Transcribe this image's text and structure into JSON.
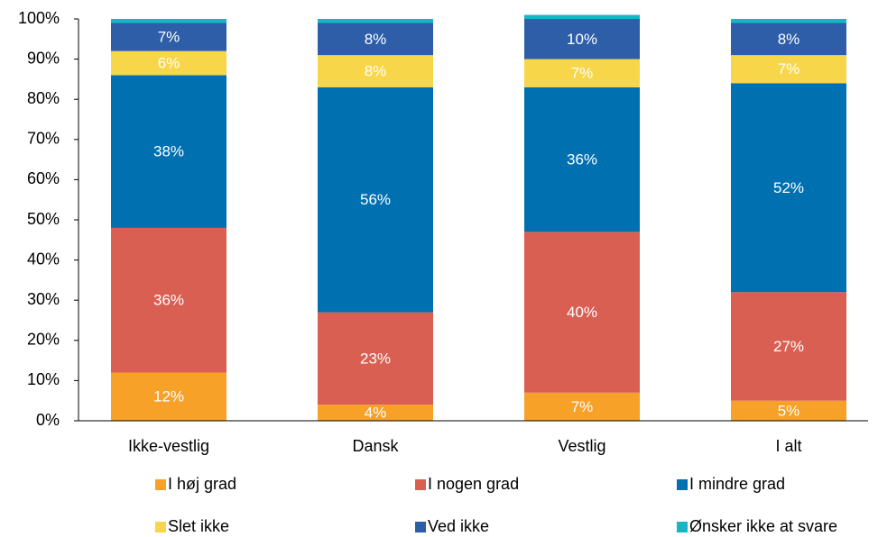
{
  "chart_data": {
    "type": "stacked-bar",
    "categories": [
      "Ikke-vestlig",
      "Dansk",
      "Vestlig",
      "I alt"
    ],
    "series": [
      {
        "name": "I høj grad",
        "color": "#f7a129",
        "values": [
          12,
          4,
          7,
          5
        ],
        "value_labels": [
          "12%",
          "4%",
          "7%",
          "5%"
        ]
      },
      {
        "name": "I nogen grad",
        "color": "#d95f52",
        "values": [
          36,
          23,
          40,
          27
        ],
        "value_labels": [
          "36%",
          "23%",
          "40%",
          "27%"
        ]
      },
      {
        "name": "I mindre grad",
        "color": "#0070b0",
        "values": [
          38,
          56,
          36,
          52
        ],
        "value_labels": [
          "38%",
          "56%",
          "36%",
          "52%"
        ]
      },
      {
        "name": "Slet ikke",
        "color": "#f8d64a",
        "values": [
          6,
          8,
          7,
          7
        ],
        "value_labels": [
          "6%",
          "8%",
          "7%",
          "7%"
        ]
      },
      {
        "name": "Ved ikke",
        "color": "#2e5ea8",
        "values": [
          7,
          8,
          10,
          8
        ],
        "value_labels": [
          "7%",
          "8%",
          "10%",
          "8%"
        ]
      },
      {
        "name": "Ønsker ikke at svare",
        "color": "#17b5c6",
        "values": [
          1,
          1,
          1,
          1
        ],
        "value_labels": [
          null,
          null,
          null,
          null
        ]
      }
    ],
    "ylim": [
      0,
      100
    ],
    "yticks": [
      {
        "value": 0,
        "label": "0%"
      },
      {
        "value": 10,
        "label": "10%"
      },
      {
        "value": 20,
        "label": "20%"
      },
      {
        "value": 30,
        "label": "30%"
      },
      {
        "value": 40,
        "label": "40%"
      },
      {
        "value": 50,
        "label": "50%"
      },
      {
        "value": 60,
        "label": "60%"
      },
      {
        "value": 70,
        "label": "70%"
      },
      {
        "value": 80,
        "label": "80%"
      },
      {
        "value": 90,
        "label": "90%"
      },
      {
        "value": 100,
        "label": "100%"
      }
    ],
    "legend": "bottom",
    "grid": false
  }
}
